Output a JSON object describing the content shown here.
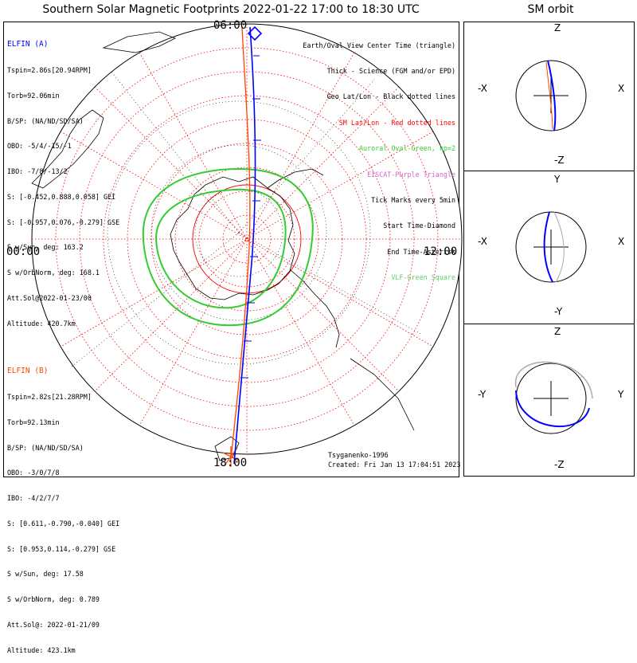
{
  "title": "Southern Solar Magnetic Footprints 2022-01-22 17:00 to 18:30 UTC",
  "orbit_title": "SM orbit",
  "clock_labels": {
    "top": "06:00",
    "left": "00:00",
    "right": "12:00",
    "bottom": "18:00"
  },
  "elfin_a": {
    "name": "ELFIN (A)",
    "color": "#0000ff",
    "lines": [
      "Tspin=2.86s[20.94RPM]",
      "Torb=92.06min",
      "B/SP: (NA/ND/SD/SA)",
      "OBO: -5/4/-15/-1",
      "IBO: -7/8/-13/2",
      "S: [-0.452,0.888,0.058] GEI",
      "S: [-0.957,0.076,-0.279] GSE",
      "S w/Sun, deg: 163.2",
      "S w/OrbNorm, deg: 168.1",
      "Att.Sol@2022-01-23/00",
      "Altitude: 420.7km"
    ]
  },
  "elfin_b": {
    "name": "ELFIN (B)",
    "color": "#ff4400",
    "lines": [
      "Tspin=2.82s[21.28RPM]",
      "Torb=92.13min",
      "B/SP: (NA/ND/SD/SA)",
      "OBO: -3/0/7/8",
      "IBO: -4/2/7/7",
      "S: [0.611,-0.790,-0.040] GEI",
      "S: [0.953,0.114,-0.279] GSE",
      "S w/Sun, deg: 17.58",
      "S w/OrbNorm, deg: 0.789",
      "Att.Sol@: 2022-01-21/09",
      "Altitude: 423.1km"
    ]
  },
  "legend": [
    {
      "text": "Earth/Oval View Center Time (triangle)",
      "color": "#000000"
    },
    {
      "text": "Thick - Science (FGM and/or EPD)",
      "color": "#000000"
    },
    {
      "text": "Geo Lat/Lon - Black dotted lines",
      "color": "#000000"
    },
    {
      "text": "SM Lat/Lon - Red dotted lines",
      "color": "#ff0000"
    },
    {
      "text": "Auroral Oval-Green, kp=2",
      "color": "#33cc33"
    },
    {
      "text": "EISCAT-Purple Triangle",
      "color": "#cc66cc"
    },
    {
      "text": "Tick Marks every 5min",
      "color": "#000000"
    },
    {
      "text": "Start Time-Diamond",
      "color": "#000000"
    },
    {
      "text": "End Time-Asterisk",
      "color": "#000000"
    },
    {
      "text": "VLF-Green Square",
      "color": "#66cc66"
    }
  ],
  "credits": {
    "author": "Tsyganenko-1996",
    "created": "Created: Fri Jan 13 17:04:51 2023"
  },
  "orbit_panels": [
    {
      "top": "Z",
      "bottom": "-Z",
      "left": "-X",
      "right": "X"
    },
    {
      "top": "Y",
      "bottom": "-Y",
      "left": "-X",
      "right": "X"
    },
    {
      "top": "Z",
      "bottom": "-Z",
      "left": "-Y",
      "right": "Y"
    }
  ],
  "colors": {
    "sm_grid": "#ff0000",
    "geo_grid": "#000000",
    "oval": "#33cc33",
    "track_a": "#0000ff",
    "track_b": "#ff4400"
  }
}
